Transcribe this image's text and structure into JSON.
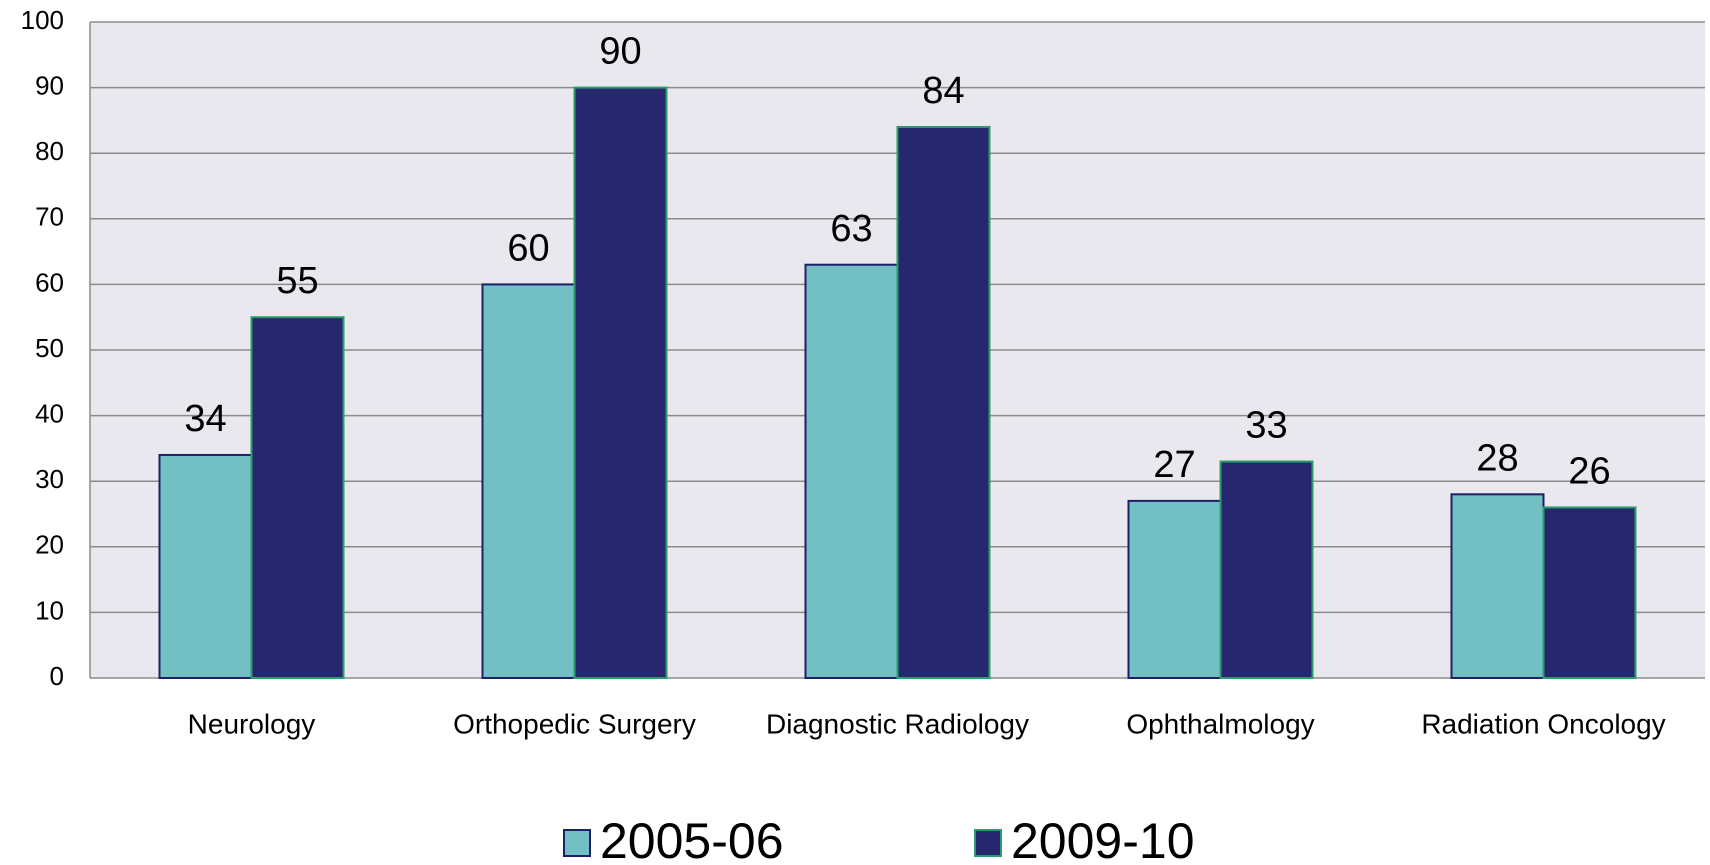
{
  "chart_data": {
    "type": "bar",
    "categories": [
      "Neurology",
      "Orthopedic Surgery",
      "Diagnostic Radiology",
      "Ophthalmology",
      "Radiation Oncology"
    ],
    "series": [
      {
        "name": "2005-06",
        "color": "#72bfc4",
        "values": [
          34,
          60,
          63,
          27,
          28
        ]
      },
      {
        "name": "2009-10",
        "color": "#272770",
        "values": [
          55,
          90,
          84,
          33,
          26
        ]
      }
    ],
    "ylim": [
      0,
      100
    ],
    "yticks": [
      0,
      10,
      20,
      30,
      40,
      50,
      60,
      70,
      80,
      90,
      100
    ],
    "grid": true,
    "legend": "bottom"
  }
}
